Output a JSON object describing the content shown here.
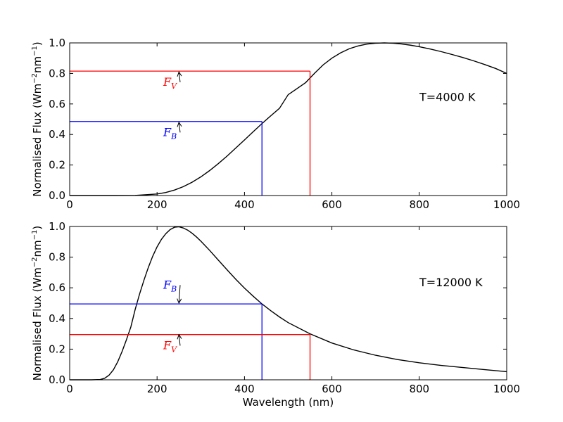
{
  "chart_data": [
    {
      "type": "line",
      "title": "",
      "xlabel": "",
      "ylabel_main": "Normalised Flux (Wm",
      "ylabel_sup1": "−2",
      "ylabel_mid": "nm",
      "ylabel_sup2": "−1",
      "ylabel_end": ")",
      "xlim": [
        0,
        1000
      ],
      "ylim": [
        0,
        1.0
      ],
      "xticks": [
        0,
        200,
        400,
        600,
        800,
        1000
      ],
      "yticks": [
        0.0,
        0.2,
        0.4,
        0.6,
        0.8,
        1.0
      ],
      "ytick_labels": [
        "0.0",
        "0.2",
        "0.4",
        "0.6",
        "0.8",
        "1.0"
      ],
      "grid": false,
      "temperature_label": "T=4000 K",
      "temperature_K": 4000,
      "curve_color": "#000000",
      "series": [
        {
          "x": [
            0,
            50,
            100,
            150,
            200,
            220,
            240,
            260,
            280,
            300,
            320,
            340,
            360,
            380,
            400,
            420,
            440,
            460,
            480,
            500,
            520,
            540,
            560,
            580,
            600,
            620,
            640,
            660,
            680,
            700,
            720,
            740,
            760,
            780,
            800,
            825,
            850,
            875,
            900,
            925,
            950,
            975,
            1000
          ],
          "values": [
            0,
            0,
            0.0,
            0.0006,
            0.01,
            0.02,
            0.036,
            0.058,
            0.087,
            0.122,
            0.163,
            0.209,
            0.258,
            0.311,
            0.364,
            0.418,
            0.471,
            0.522,
            0.571,
            0.661,
            0.7,
            0.74,
            0.8,
            0.856,
            0.9,
            0.935,
            0.962,
            0.98,
            0.992,
            0.998,
            1.0,
            0.998,
            0.993,
            0.985,
            0.975,
            0.96,
            0.943,
            0.924,
            0.904,
            0.882,
            0.858,
            0.832,
            0.8
          ]
        }
      ],
      "markers": [
        {
          "name": "F_B",
          "x": 440,
          "y": 0.485,
          "color": "#0000ff"
        },
        {
          "name": "F_V",
          "x": 550,
          "y": 0.815,
          "color": "#ff0000"
        }
      ],
      "annotations": [
        {
          "base": "F",
          "sub": "V",
          "color": "#ff0000",
          "label_x": 190,
          "label_y": 0.72,
          "arrow_to_x": 250,
          "arrow_to_y": 0.81
        },
        {
          "base": "F",
          "sub": "B",
          "color": "#0000ff",
          "label_x": 190,
          "label_y": 0.39,
          "arrow_to_x": 250,
          "arrow_to_y": 0.48
        }
      ]
    },
    {
      "type": "line",
      "title": "",
      "xlabel": "Wavelength (nm)",
      "ylabel_main": "Normalised Flux (Wm",
      "ylabel_sup1": "−2",
      "ylabel_mid": "nm",
      "ylabel_sup2": "−1",
      "ylabel_end": ")",
      "xlim": [
        0,
        1000
      ],
      "ylim": [
        0,
        1.0
      ],
      "xticks": [
        0,
        200,
        400,
        600,
        800,
        1000
      ],
      "yticks": [
        0.0,
        0.2,
        0.4,
        0.6,
        0.8,
        1.0
      ],
      "ytick_labels": [
        "0.0",
        "0.2",
        "0.4",
        "0.6",
        "0.8",
        "1.0"
      ],
      "grid": false,
      "temperature_label": "T=12000 K",
      "temperature_K": 12000,
      "curve_color": "#000000",
      "series": [
        {
          "x": [
            0,
            50,
            70,
            80,
            90,
            100,
            110,
            120,
            130,
            140,
            150,
            160,
            170,
            180,
            190,
            200,
            210,
            220,
            230,
            240,
            250,
            260,
            270,
            280,
            290,
            300,
            320,
            340,
            360,
            380,
            400,
            420,
            440,
            460,
            480,
            500,
            550,
            600,
            650,
            700,
            750,
            800,
            850,
            900,
            950,
            1000
          ],
          "values": [
            0,
            0,
            0.002,
            0.01,
            0.03,
            0.065,
            0.118,
            0.185,
            0.262,
            0.345,
            0.46,
            0.56,
            0.65,
            0.733,
            0.806,
            0.867,
            0.916,
            0.953,
            0.98,
            0.995,
            0.998,
            0.99,
            0.976,
            0.956,
            0.932,
            0.905,
            0.845,
            0.781,
            0.718,
            0.656,
            0.598,
            0.545,
            0.495,
            0.451,
            0.41,
            0.373,
            0.3,
            0.24,
            0.195,
            0.16,
            0.132,
            0.111,
            0.094,
            0.08,
            0.066,
            0.053
          ]
        }
      ],
      "markers": [
        {
          "name": "F_B",
          "x": 440,
          "y": 0.495,
          "color": "#0000ff"
        },
        {
          "name": "F_V",
          "x": 550,
          "y": 0.295,
          "color": "#ff0000"
        }
      ],
      "annotations": [
        {
          "base": "F",
          "sub": "B",
          "color": "#0000ff",
          "label_x": 190,
          "label_y": 0.595,
          "arrow_to_x": 250,
          "arrow_to_y": 0.5
        },
        {
          "base": "F",
          "sub": "V",
          "color": "#ff0000",
          "label_x": 190,
          "label_y": 0.2,
          "arrow_to_x": 250,
          "arrow_to_y": 0.295
        }
      ]
    }
  ]
}
